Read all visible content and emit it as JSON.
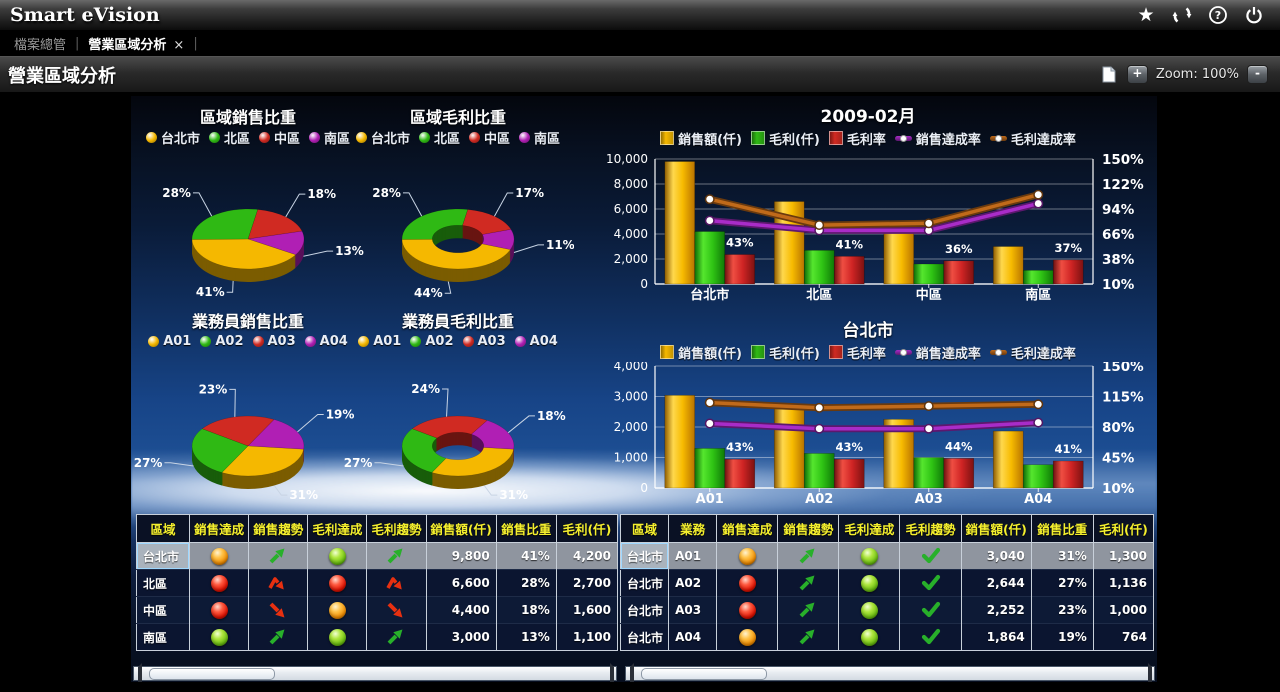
{
  "app": {
    "title": "Smart eVision"
  },
  "tab_bar": {
    "menu_item": "檔案總管",
    "active_tab": "營業區域分析",
    "close": "×"
  },
  "toolbar": {
    "page_title": "營業區域分析",
    "zoom_in": "+",
    "zoom_label": "Zoom: 100%",
    "zoom_out": "-"
  },
  "palette": {
    "taipei_yellow": "#f5b800",
    "north_green": "#2fb914",
    "central_red": "#d02a22",
    "south_purple": "#b01fb4",
    "sales_ach_line": "#a82cc8",
    "profit_ach_line": "#c06a1a"
  },
  "chart_data": [
    {
      "id": "pie-region-sales",
      "type": "pie",
      "title": "區域銷售比重",
      "donut": false,
      "start_angle": -80,
      "legend": [
        {
          "label": "台北市",
          "color": "#f5b800"
        },
        {
          "label": "北區",
          "color": "#2fb914"
        },
        {
          "label": "中區",
          "color": "#d02a22"
        },
        {
          "label": "南區",
          "color": "#b01fb4"
        }
      ],
      "slices": [
        {
          "label": "中區",
          "pct": 18,
          "color": "#d02a22"
        },
        {
          "label": "南區",
          "pct": 13,
          "color": "#b01fb4"
        },
        {
          "label": "台北市",
          "pct": 41,
          "color": "#f5b800"
        },
        {
          "label": "北區",
          "pct": 28,
          "color": "#2fb914"
        }
      ]
    },
    {
      "id": "pie-region-profit",
      "type": "pie",
      "title": "區域毛利比重",
      "donut": true,
      "start_angle": -80,
      "legend": [
        {
          "label": "台北市",
          "color": "#f5b800"
        },
        {
          "label": "北區",
          "color": "#2fb914"
        },
        {
          "label": "中區",
          "color": "#d02a22"
        },
        {
          "label": "南區",
          "color": "#b01fb4"
        }
      ],
      "slices": [
        {
          "label": "中區",
          "pct": 17,
          "color": "#d02a22"
        },
        {
          "label": "南區",
          "pct": 11,
          "color": "#b01fb4"
        },
        {
          "label": "台北市",
          "pct": 44,
          "color": "#f5b800"
        },
        {
          "label": "北區",
          "pct": 28,
          "color": "#2fb914"
        }
      ]
    },
    {
      "id": "pie-agent-sales",
      "type": "pie",
      "title": "業務員銷售比重",
      "donut": false,
      "start_angle": -145,
      "legend": [
        {
          "label": "A01",
          "color": "#f5b800"
        },
        {
          "label": "A02",
          "color": "#2fb914"
        },
        {
          "label": "A03",
          "color": "#d02a22"
        },
        {
          "label": "A04",
          "color": "#b01fb4"
        }
      ],
      "slices": [
        {
          "label": "A03",
          "pct": 23,
          "color": "#d02a22"
        },
        {
          "label": "A04",
          "pct": 19,
          "color": "#b01fb4"
        },
        {
          "label": "A01",
          "pct": 31,
          "color": "#f5b800"
        },
        {
          "label": "A02",
          "pct": 27,
          "color": "#2fb914"
        }
      ]
    },
    {
      "id": "pie-agent-profit",
      "type": "pie",
      "title": "業務員毛利比重",
      "donut": true,
      "start_angle": -145,
      "legend": [
        {
          "label": "A01",
          "color": "#f5b800"
        },
        {
          "label": "A02",
          "color": "#2fb914"
        },
        {
          "label": "A03",
          "color": "#d02a22"
        },
        {
          "label": "A04",
          "color": "#b01fb4"
        }
      ],
      "slices": [
        {
          "label": "A03",
          "pct": 24,
          "color": "#d02a22"
        },
        {
          "label": "A04",
          "pct": 18,
          "color": "#b01fb4"
        },
        {
          "label": "A01",
          "pct": 31,
          "color": "#f5b800"
        },
        {
          "label": "A02",
          "pct": 27,
          "color": "#2fb914"
        }
      ]
    },
    {
      "id": "bar-region",
      "type": "bar-line",
      "title": "2009-02月",
      "legend": [
        {
          "label": "銷售額(仟)",
          "swatch": "bar",
          "color": "#f5b800"
        },
        {
          "label": "毛利(仟)",
          "swatch": "bar",
          "color": "#2fb914"
        },
        {
          "label": "毛利率",
          "swatch": "bar",
          "color": "#d02a22"
        },
        {
          "label": "銷售達成率",
          "swatch": "line",
          "color": "#a82cc8"
        },
        {
          "label": "毛利達成率",
          "swatch": "line",
          "color": "#c06a1a"
        }
      ],
      "categories": [
        "台北市",
        "北區",
        "中區",
        "南區"
      ],
      "y_left": {
        "min": 0,
        "max": 10000,
        "ticks": [
          "10,000",
          "8,000",
          "6,000",
          "4,000",
          "2,000",
          "0"
        ]
      },
      "y_right": {
        "min": 10,
        "max": 150,
        "ticks": [
          "150%",
          "122%",
          "94%",
          "66%",
          "38%",
          "10%"
        ]
      },
      "bars": {
        "sales": [
          9800,
          6600,
          4400,
          3000
        ],
        "profit": [
          4200,
          2700,
          1600,
          1100
        ],
        "margin_pct": [
          43,
          41,
          36,
          37
        ]
      },
      "bar_labels": [
        "43%",
        "41%",
        "36%",
        "37%"
      ],
      "lines": {
        "sales_achievement_pct": [
          81,
          70,
          70,
          100
        ],
        "profit_achievement_pct": [
          105,
          76,
          78,
          110
        ]
      }
    },
    {
      "id": "bar-taipei",
      "type": "bar-line",
      "title": "台北市",
      "legend": [
        {
          "label": "銷售額(仟)",
          "swatch": "bar",
          "color": "#f5b800"
        },
        {
          "label": "毛利(仟)",
          "swatch": "bar",
          "color": "#2fb914"
        },
        {
          "label": "毛利率",
          "swatch": "bar",
          "color": "#d02a22"
        },
        {
          "label": "銷售達成率",
          "swatch": "line",
          "color": "#a82cc8"
        },
        {
          "label": "毛利達成率",
          "swatch": "line",
          "color": "#c06a1a"
        }
      ],
      "categories": [
        "A01",
        "A02",
        "A03",
        "A04"
      ],
      "y_left": {
        "min": 0,
        "max": 4000,
        "ticks": [
          "4,000",
          "3,000",
          "2,000",
          "1,000",
          "0"
        ]
      },
      "y_right": {
        "min": 10,
        "max": 150,
        "ticks": [
          "150%",
          "115%",
          "80%",
          "45%",
          "10%"
        ]
      },
      "bars": {
        "sales": [
          3040,
          2644,
          2252,
          1864
        ],
        "profit": [
          1300,
          1136,
          1000,
          764
        ],
        "margin_pct": [
          43,
          43,
          44,
          41
        ]
      },
      "bar_labels": [
        "43%",
        "43%",
        "44%",
        "41%"
      ],
      "lines": {
        "sales_achievement_pct": [
          84,
          78,
          78,
          85
        ],
        "profit_achievement_pct": [
          108,
          102,
          104,
          106
        ]
      }
    }
  ],
  "tables": {
    "left": {
      "headers": [
        "區域",
        "銷售達成",
        "銷售趨勢",
        "毛利達成",
        "毛利趨勢",
        "銷售額(仟)",
        "銷售比重",
        "毛利(仟)"
      ],
      "col_types": [
        "text",
        "light",
        "trend",
        "light",
        "trend",
        "num",
        "num",
        "num"
      ],
      "rows": [
        {
          "selected": true,
          "cells": [
            "台北市",
            "orange",
            "up",
            "green",
            "up",
            "9,800",
            "41%",
            "4,200"
          ]
        },
        {
          "selected": false,
          "cells": [
            "北區",
            "red",
            "peak",
            "red",
            "peak",
            "6,600",
            "28%",
            "2,700"
          ]
        },
        {
          "selected": false,
          "cells": [
            "中區",
            "red",
            "down",
            "orange",
            "down",
            "4,400",
            "18%",
            "1,600"
          ]
        },
        {
          "selected": false,
          "cells": [
            "南區",
            "green",
            "up",
            "green",
            "up",
            "3,000",
            "13%",
            "1,100"
          ]
        }
      ]
    },
    "right": {
      "headers": [
        "區域",
        "業務",
        "銷售達成",
        "銷售趨勢",
        "毛利達成",
        "毛利趨勢",
        "銷售額(仟)",
        "銷售比重",
        "毛利(仟)"
      ],
      "col_types": [
        "text",
        "text",
        "light",
        "trend",
        "light",
        "trend",
        "num",
        "num",
        "num"
      ],
      "rows": [
        {
          "selected": true,
          "cells": [
            "台北市",
            "A01",
            "orange",
            "up",
            "green",
            "check",
            "3,040",
            "31%",
            "1,300"
          ]
        },
        {
          "selected": false,
          "cells": [
            "台北市",
            "A02",
            "red",
            "up",
            "green",
            "check",
            "2,644",
            "27%",
            "1,136"
          ]
        },
        {
          "selected": false,
          "cells": [
            "台北市",
            "A03",
            "red",
            "up",
            "green",
            "check",
            "2,252",
            "23%",
            "1,000"
          ]
        },
        {
          "selected": false,
          "cells": [
            "台北市",
            "A04",
            "orange",
            "up",
            "green",
            "check",
            "1,864",
            "19%",
            "764"
          ]
        }
      ]
    }
  }
}
